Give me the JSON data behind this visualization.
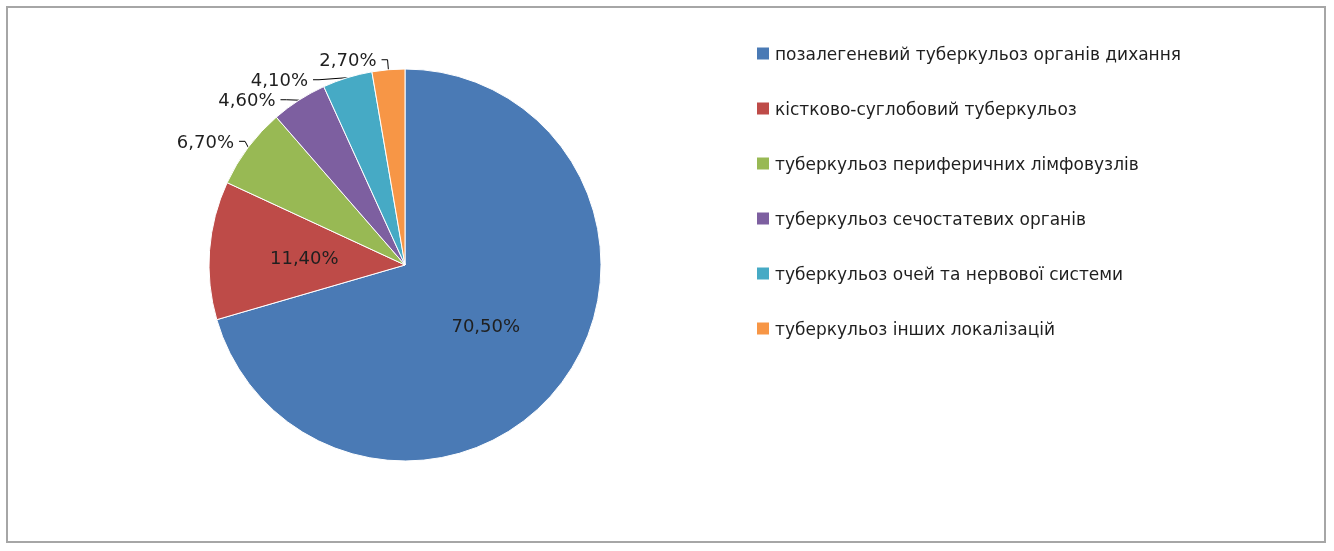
{
  "chart_data": {
    "type": "pie",
    "categories": [
      "позалегеневий туберкульоз органів дихання",
      "кістково-суглобовий туберкульоз",
      "туберкульоз периферичних лімфовузлів",
      "туберкульоз сечостатевих органів",
      "туберкульоз очей та нервової системи",
      "туберкульоз інших локалізацій"
    ],
    "values": [
      70.5,
      11.4,
      6.7,
      4.6,
      4.1,
      2.7
    ],
    "colors": [
      "#4a7ab5",
      "#be4b48",
      "#98b954",
      "#7d5fa0",
      "#46aac5",
      "#f79646"
    ],
    "value_labels": [
      "70,50%",
      "11,40%",
      "6,70%",
      "4,60%",
      "4,10%",
      "2,70%"
    ],
    "legend": "right"
  }
}
